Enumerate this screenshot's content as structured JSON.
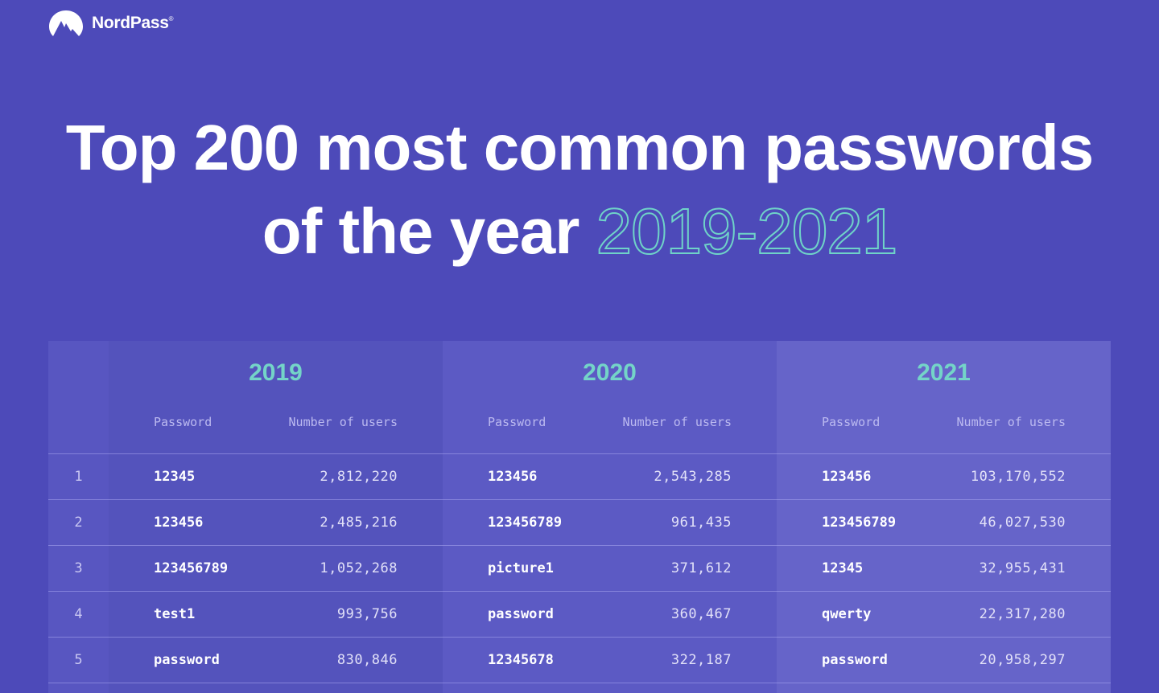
{
  "brand": {
    "name": "NordPass",
    "mark": "®"
  },
  "title": {
    "line1": "Top 200 most common passwords",
    "line2_prefix": "of the year",
    "line2_highlight": "2019-2021"
  },
  "table": {
    "years": [
      "2019",
      "2020",
      "2021"
    ],
    "col_password": "Password",
    "col_users": "Number of users",
    "rows": [
      {
        "rank": "1",
        "y2019": {
          "pw": "12345",
          "users": "2,812,220"
        },
        "y2020": {
          "pw": "123456",
          "users": "2,543,285"
        },
        "y2021": {
          "pw": "123456",
          "users": "103,170,552"
        }
      },
      {
        "rank": "2",
        "y2019": {
          "pw": "123456",
          "users": "2,485,216"
        },
        "y2020": {
          "pw": "123456789",
          "users": "961,435"
        },
        "y2021": {
          "pw": "123456789",
          "users": "46,027,530"
        }
      },
      {
        "rank": "3",
        "y2019": {
          "pw": "123456789",
          "users": "1,052,268"
        },
        "y2020": {
          "pw": "picture1",
          "users": "371,612"
        },
        "y2021": {
          "pw": "12345",
          "users": "32,955,431"
        }
      },
      {
        "rank": "4",
        "y2019": {
          "pw": "test1",
          "users": "993,756"
        },
        "y2020": {
          "pw": "password",
          "users": "360,467"
        },
        "y2021": {
          "pw": "qwerty",
          "users": "22,317,280"
        }
      },
      {
        "rank": "5",
        "y2019": {
          "pw": "password",
          "users": "830,846"
        },
        "y2020": {
          "pw": "12345678",
          "users": "322,187"
        },
        "y2021": {
          "pw": "password",
          "users": "20,958,297"
        }
      }
    ]
  },
  "colors": {
    "background": "#4d4ab9",
    "accent": "#74d4c8"
  }
}
